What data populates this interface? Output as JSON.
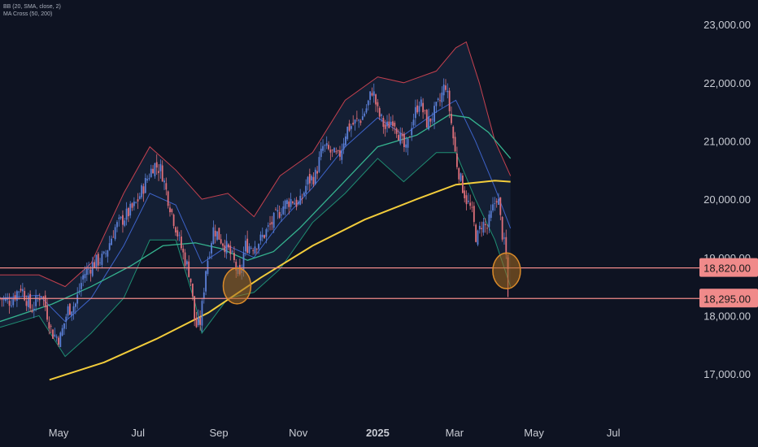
{
  "legend": {
    "bb": "BB (20, SMA, close, 2)",
    "ma": "MA Cross (50, 200)"
  },
  "colors": {
    "background": "#0e1322",
    "candle_up": "#5b7fd6",
    "candle_down": "#e0707a",
    "bb_upper": "#c4414f",
    "bb_lower": "#1f8f73",
    "bb_basis": "#3d63c9",
    "ma50": "#35b38f",
    "ma200": "#f2cc3b",
    "level_line": "#f08a8a",
    "level_bg": "#f08a8a",
    "circle_stroke": "#d98a2a",
    "circle_fill": "#a46a1f"
  },
  "chart_data": {
    "type": "line",
    "y_axis": {
      "ticks": [
        "23,000.00",
        "22,000.00",
        "21,000.00",
        "20,000.00",
        "19,000.00",
        "18,000.00",
        "17,000.00"
      ],
      "tick_values": [
        23000,
        22000,
        21000,
        20000,
        19000,
        18000,
        17000
      ],
      "ylim": [
        16150,
        23420
      ],
      "position": "right"
    },
    "x_axis": {
      "ticks": [
        "May",
        "Jul",
        "Sep",
        "Nov",
        "2025",
        "Mar",
        "May",
        "Jul"
      ],
      "tick_days": [
        45,
        106,
        168,
        229,
        290,
        349,
        410,
        471
      ],
      "range_days": [
        0,
        582
      ],
      "range_dates": [
        "2024-03-20",
        "2025-10-23"
      ]
    },
    "levels": [
      {
        "value": 18820,
        "label": "18,820.00"
      },
      {
        "value": 18295,
        "label": "18,295.00"
      }
    ],
    "annotations": [
      {
        "type": "circle",
        "day": 182,
        "value": 18510
      },
      {
        "type": "circle",
        "day": 389,
        "value": 18770
      }
    ],
    "price_key": [
      {
        "day": 0,
        "close": 18300
      },
      {
        "day": 8,
        "close": 18250
      },
      {
        "day": 16,
        "close": 18500
      },
      {
        "day": 24,
        "close": 18100
      },
      {
        "day": 32,
        "close": 18400
      },
      {
        "day": 40,
        "close": 17700
      },
      {
        "day": 46,
        "close": 17600
      },
      {
        "day": 52,
        "close": 18100
      },
      {
        "day": 58,
        "close": 18200
      },
      {
        "day": 64,
        "close": 18700
      },
      {
        "day": 72,
        "close": 18900
      },
      {
        "day": 80,
        "close": 19000
      },
      {
        "day": 88,
        "close": 19500
      },
      {
        "day": 96,
        "close": 19700
      },
      {
        "day": 104,
        "close": 19900
      },
      {
        "day": 112,
        "close": 20300
      },
      {
        "day": 118,
        "close": 20600
      },
      {
        "day": 124,
        "close": 20500
      },
      {
        "day": 128,
        "close": 20100
      },
      {
        "day": 134,
        "close": 19600
      },
      {
        "day": 140,
        "close": 19100
      },
      {
        "day": 146,
        "close": 18700
      },
      {
        "day": 150,
        "close": 17800
      },
      {
        "day": 154,
        "close": 17900
      },
      {
        "day": 158,
        "close": 18800
      },
      {
        "day": 164,
        "close": 19500
      },
      {
        "day": 170,
        "close": 19300
      },
      {
        "day": 176,
        "close": 19100
      },
      {
        "day": 180,
        "close": 18900
      },
      {
        "day": 184,
        "close": 18600
      },
      {
        "day": 188,
        "close": 19200
      },
      {
        "day": 194,
        "close": 19200
      },
      {
        "day": 200,
        "close": 19300
      },
      {
        "day": 206,
        "close": 19500
      },
      {
        "day": 212,
        "close": 19700
      },
      {
        "day": 218,
        "close": 19900
      },
      {
        "day": 224,
        "close": 20000
      },
      {
        "day": 230,
        "close": 19900
      },
      {
        "day": 236,
        "close": 20300
      },
      {
        "day": 242,
        "close": 20400
      },
      {
        "day": 248,
        "close": 20900
      },
      {
        "day": 254,
        "close": 20800
      },
      {
        "day": 260,
        "close": 20700
      },
      {
        "day": 266,
        "close": 21200
      },
      {
        "day": 272,
        "close": 21300
      },
      {
        "day": 278,
        "close": 21400
      },
      {
        "day": 282,
        "close": 21600
      },
      {
        "day": 286,
        "close": 21900
      },
      {
        "day": 290,
        "close": 21500
      },
      {
        "day": 296,
        "close": 21200
      },
      {
        "day": 302,
        "close": 21400
      },
      {
        "day": 308,
        "close": 21000
      },
      {
        "day": 312,
        "close": 20800
      },
      {
        "day": 316,
        "close": 21300
      },
      {
        "day": 322,
        "close": 21700
      },
      {
        "day": 328,
        "close": 21300
      },
      {
        "day": 334,
        "close": 21500
      },
      {
        "day": 338,
        "close": 21700
      },
      {
        "day": 342,
        "close": 22000
      },
      {
        "day": 346,
        "close": 21400
      },
      {
        "day": 350,
        "close": 20700
      },
      {
        "day": 354,
        "close": 20300
      },
      {
        "day": 358,
        "close": 20000
      },
      {
        "day": 362,
        "close": 19800
      },
      {
        "day": 366,
        "close": 19300
      },
      {
        "day": 370,
        "close": 19600
      },
      {
        "day": 374,
        "close": 19500
      },
      {
        "day": 378,
        "close": 19800
      },
      {
        "day": 382,
        "close": 20100
      },
      {
        "day": 385,
        "close": 19500
      },
      {
        "day": 388,
        "close": 19100
      },
      {
        "day": 390,
        "close": 18800
      }
    ],
    "ma200_key": [
      {
        "day": 38,
        "value": 16900
      },
      {
        "day": 80,
        "value": 17200
      },
      {
        "day": 120,
        "value": 17600
      },
      {
        "day": 160,
        "value": 18050
      },
      {
        "day": 200,
        "value": 18650
      },
      {
        "day": 240,
        "value": 19200
      },
      {
        "day": 280,
        "value": 19650
      },
      {
        "day": 320,
        "value": 20000
      },
      {
        "day": 350,
        "value": 20250
      },
      {
        "day": 380,
        "value": 20320
      },
      {
        "day": 392,
        "value": 20300
      }
    ],
    "ma50_key": [
      {
        "day": 0,
        "value": 17900
      },
      {
        "day": 40,
        "value": 18200
      },
      {
        "day": 70,
        "value": 18500
      },
      {
        "day": 100,
        "value": 18850
      },
      {
        "day": 125,
        "value": 19200
      },
      {
        "day": 150,
        "value": 19250
      },
      {
        "day": 170,
        "value": 19150
      },
      {
        "day": 190,
        "value": 18950
      },
      {
        "day": 210,
        "value": 19100
      },
      {
        "day": 230,
        "value": 19500
      },
      {
        "day": 260,
        "value": 20200
      },
      {
        "day": 290,
        "value": 20900
      },
      {
        "day": 320,
        "value": 21100
      },
      {
        "day": 345,
        "value": 21450
      },
      {
        "day": 360,
        "value": 21400
      },
      {
        "day": 375,
        "value": 21150
      },
      {
        "day": 392,
        "value": 20700
      }
    ],
    "bb_basis_key": [
      {
        "day": 0,
        "value": 18300
      },
      {
        "day": 30,
        "value": 18350
      },
      {
        "day": 50,
        "value": 17900
      },
      {
        "day": 70,
        "value": 18300
      },
      {
        "day": 95,
        "value": 19200
      },
      {
        "day": 115,
        "value": 20100
      },
      {
        "day": 135,
        "value": 19900
      },
      {
        "day": 155,
        "value": 18900
      },
      {
        "day": 175,
        "value": 19200
      },
      {
        "day": 195,
        "value": 19000
      },
      {
        "day": 215,
        "value": 19600
      },
      {
        "day": 240,
        "value": 20200
      },
      {
        "day": 265,
        "value": 20900
      },
      {
        "day": 290,
        "value": 21400
      },
      {
        "day": 310,
        "value": 21100
      },
      {
        "day": 335,
        "value": 21500
      },
      {
        "day": 350,
        "value": 21700
      },
      {
        "day": 365,
        "value": 21000
      },
      {
        "day": 380,
        "value": 20200
      },
      {
        "day": 392,
        "value": 19500
      }
    ],
    "bb_upper_key": [
      {
        "day": 0,
        "value": 18700
      },
      {
        "day": 30,
        "value": 18700
      },
      {
        "day": 50,
        "value": 18500
      },
      {
        "day": 70,
        "value": 18900
      },
      {
        "day": 95,
        "value": 20100
      },
      {
        "day": 115,
        "value": 20900
      },
      {
        "day": 135,
        "value": 20500
      },
      {
        "day": 155,
        "value": 20000
      },
      {
        "day": 175,
        "value": 20100
      },
      {
        "day": 195,
        "value": 19700
      },
      {
        "day": 215,
        "value": 20400
      },
      {
        "day": 240,
        "value": 20800
      },
      {
        "day": 265,
        "value": 21700
      },
      {
        "day": 290,
        "value": 22100
      },
      {
        "day": 310,
        "value": 22000
      },
      {
        "day": 335,
        "value": 22200
      },
      {
        "day": 350,
        "value": 22600
      },
      {
        "day": 358,
        "value": 22700
      },
      {
        "day": 368,
        "value": 22000
      },
      {
        "day": 380,
        "value": 21000
      },
      {
        "day": 392,
        "value": 20400
      }
    ],
    "bb_lower_key": [
      {
        "day": 0,
        "value": 17800
      },
      {
        "day": 30,
        "value": 18000
      },
      {
        "day": 50,
        "value": 17300
      },
      {
        "day": 70,
        "value": 17700
      },
      {
        "day": 95,
        "value": 18300
      },
      {
        "day": 115,
        "value": 19300
      },
      {
        "day": 135,
        "value": 19300
      },
      {
        "day": 150,
        "value": 18200
      },
      {
        "day": 155,
        "value": 17700
      },
      {
        "day": 175,
        "value": 18300
      },
      {
        "day": 195,
        "value": 18400
      },
      {
        "day": 215,
        "value": 18800
      },
      {
        "day": 240,
        "value": 19600
      },
      {
        "day": 265,
        "value": 20100
      },
      {
        "day": 290,
        "value": 20700
      },
      {
        "day": 310,
        "value": 20300
      },
      {
        "day": 335,
        "value": 20800
      },
      {
        "day": 350,
        "value": 20800
      },
      {
        "day": 365,
        "value": 20000
      },
      {
        "day": 380,
        "value": 19300
      },
      {
        "day": 392,
        "value": 18500
      }
    ]
  }
}
